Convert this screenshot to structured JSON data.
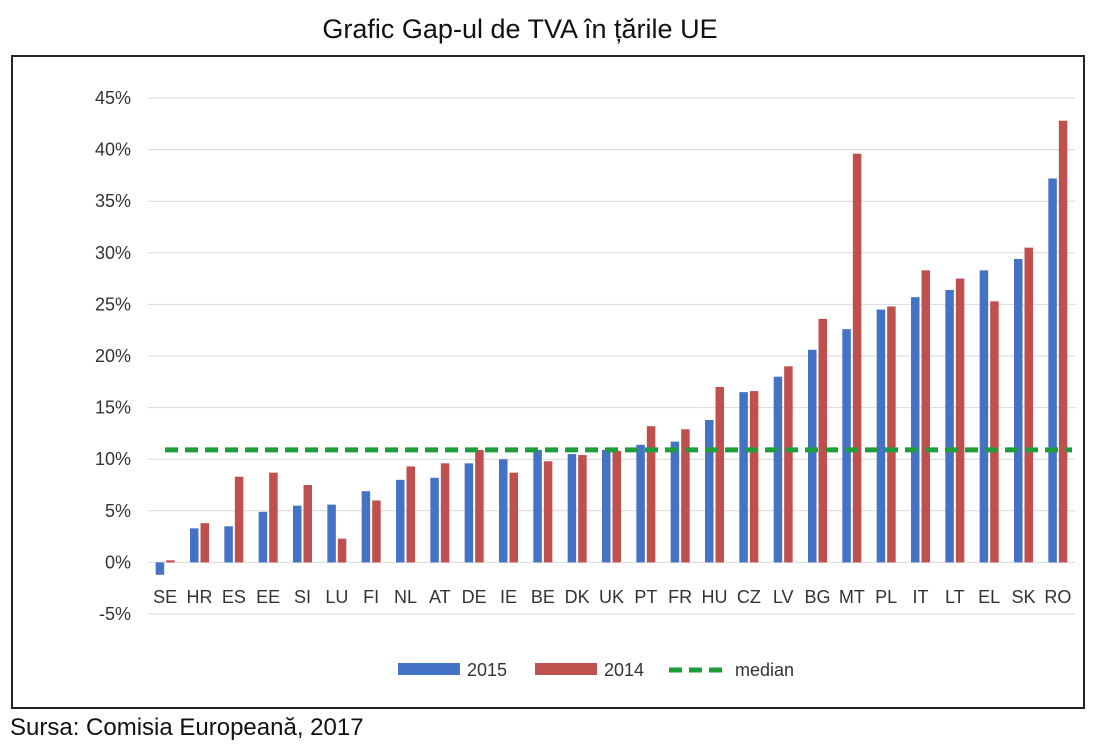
{
  "title": "Grafic Gap-ul de TVA în țările UE",
  "source": "Sursa: Comisia Europeană, 2017",
  "chart_data": {
    "type": "bar",
    "categories": [
      "SE",
      "HR",
      "ES",
      "EE",
      "SI",
      "LU",
      "FI",
      "NL",
      "AT",
      "DE",
      "IE",
      "BE",
      "DK",
      "UK",
      "PT",
      "FR",
      "HU",
      "CZ",
      "LV",
      "BG",
      "MT",
      "PL",
      "IT",
      "LT",
      "EL",
      "SK",
      "RO"
    ],
    "series": [
      {
        "name": "2015",
        "color": "#4472C4",
        "values": [
          -1.2,
          3.3,
          3.5,
          4.9,
          5.5,
          5.6,
          6.9,
          8.0,
          8.2,
          9.6,
          10.0,
          10.9,
          10.5,
          10.9,
          11.4,
          11.7,
          13.8,
          16.5,
          18.0,
          20.6,
          22.6,
          24.5,
          25.7,
          26.4,
          28.3,
          29.4,
          37.2
        ]
      },
      {
        "name": "2014",
        "color": "#C0504D",
        "values": [
          0.2,
          3.8,
          8.3,
          8.7,
          7.5,
          2.3,
          6.0,
          9.3,
          9.6,
          10.9,
          8.7,
          9.8,
          10.4,
          10.8,
          13.2,
          12.9,
          17.0,
          16.6,
          19.0,
          23.6,
          39.6,
          24.8,
          28.3,
          27.5,
          25.3,
          30.5,
          42.8
        ]
      }
    ],
    "median": {
      "name": "median",
      "value": 10.9,
      "color": "#1E9E3A"
    },
    "yticks": [
      "45%",
      "40%",
      "35%",
      "30%",
      "25%",
      "20%",
      "15%",
      "10%",
      "5%",
      "0%",
      "-5%"
    ],
    "ylim": [
      -5,
      45
    ],
    "grid": true,
    "legend": "bottom"
  }
}
